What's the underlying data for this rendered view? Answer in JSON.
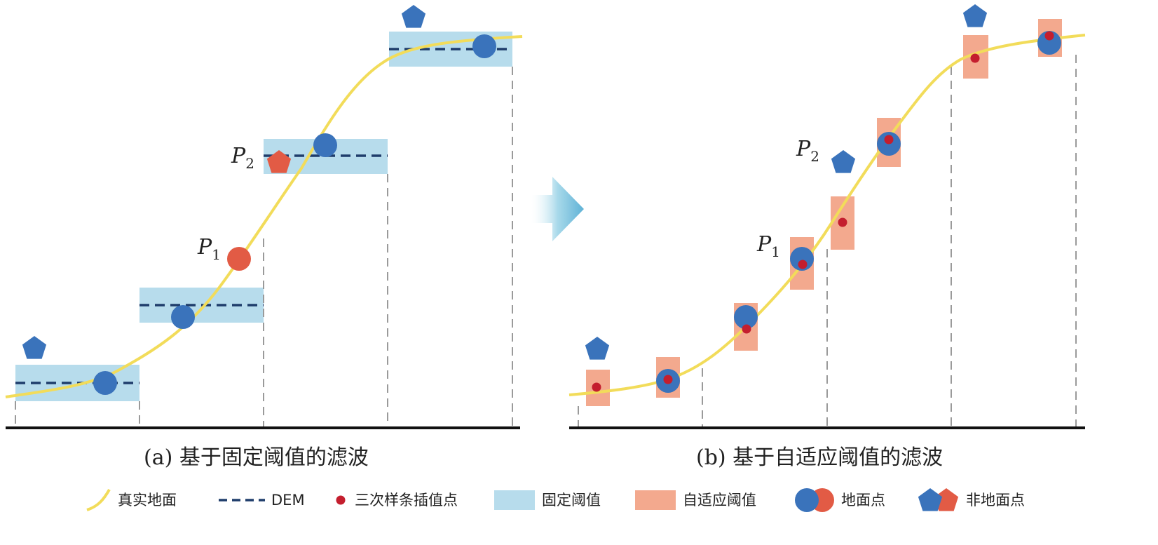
{
  "panels": {
    "a": {
      "caption": "(a) 基于固定阈值的滤波"
    },
    "b": {
      "caption": "(b) 基于自适应阈值的滤波"
    }
  },
  "labels": {
    "p1": {
      "letter": "P",
      "sub": "1"
    },
    "p2": {
      "letter": "P",
      "sub": "2"
    }
  },
  "legend": {
    "true_ground": "真实地面",
    "dem": "DEM",
    "spline": "三次样条插值点",
    "fixed_threshold": "固定阈值",
    "adaptive_threshold": "自适应阈值",
    "ground_point": "地面点",
    "nonground_point": "非地面点"
  },
  "colors": {
    "curve": "#f2dc5a",
    "dem": "#1f3d6b",
    "fixed_band": "#b7dcec",
    "adaptive_band": "#f3a98e",
    "ground_blue": "#3a73bb",
    "nonground_red": "#e25b45",
    "spline_dot": "#c41e2e",
    "axis": "#111111",
    "grid": "#9a9a9a",
    "arrow": "#7cc3dd"
  },
  "icons": {
    "arrow": "right-arrow-icon",
    "ground": "circle-marker-icon",
    "nonground": "pentagon-marker-icon"
  }
}
